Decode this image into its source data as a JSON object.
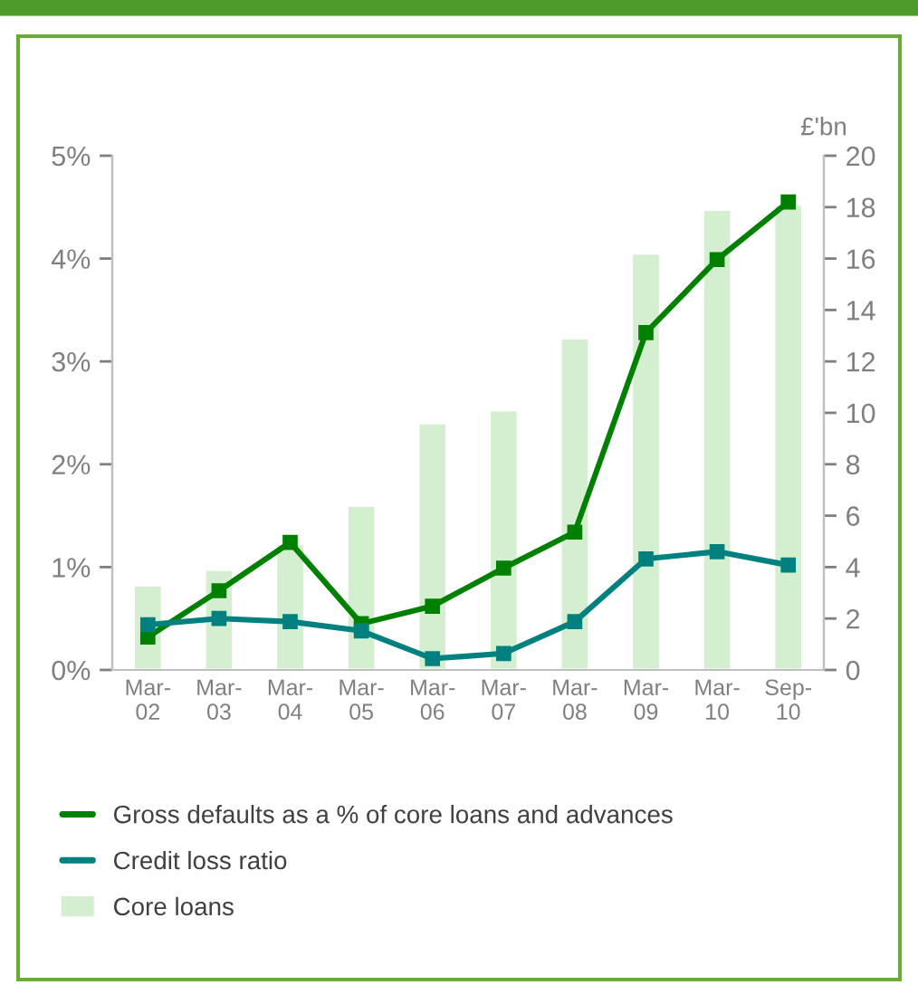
{
  "chart_data": {
    "type": "line",
    "categories": [
      "Mar-\n02",
      "Mar-\n03",
      "Mar-\n04",
      "Mar-\n05",
      "Mar-\n06",
      "Mar-\n07",
      "Mar-\n08",
      "Mar-\n09",
      "Mar-\n10",
      "Sep-\n10"
    ],
    "series": [
      {
        "name": "Gross defaults as a % of core loans and advances",
        "axis": "y",
        "marker": "square",
        "color": "#008000",
        "values": [
          0.32,
          0.77,
          1.24,
          0.45,
          0.62,
          0.99,
          1.34,
          3.28,
          3.99,
          4.55
        ]
      },
      {
        "name": "Credit loss ratio",
        "axis": "y",
        "marker": "square",
        "color": "#00807f",
        "values": [
          0.44,
          0.5,
          0.47,
          0.38,
          0.11,
          0.16,
          0.47,
          1.08,
          1.15,
          1.02
        ]
      },
      {
        "name": "Core loans",
        "type": "bar",
        "axis": "y2",
        "color": "#d4efd0",
        "values": [
          3.3,
          3.9,
          4.9,
          6.4,
          9.6,
          10.1,
          12.9,
          16.2,
          17.9,
          18.1
        ]
      }
    ],
    "y2label": "£'bn",
    "ylim": [
      0,
      5
    ],
    "yticks": [
      {
        "value": 0,
        "label": "0%"
      },
      {
        "value": 1,
        "label": "1%"
      },
      {
        "value": 2,
        "label": "2%"
      },
      {
        "value": 3,
        "label": "3%"
      },
      {
        "value": 4,
        "label": "4%"
      },
      {
        "value": 5,
        "label": "5%"
      }
    ],
    "y2lim": [
      0,
      20
    ],
    "y2ticks": [
      0,
      2,
      4,
      6,
      8,
      10,
      12,
      14,
      16,
      18,
      20
    ],
    "grid": false,
    "legend": "bottom"
  }
}
